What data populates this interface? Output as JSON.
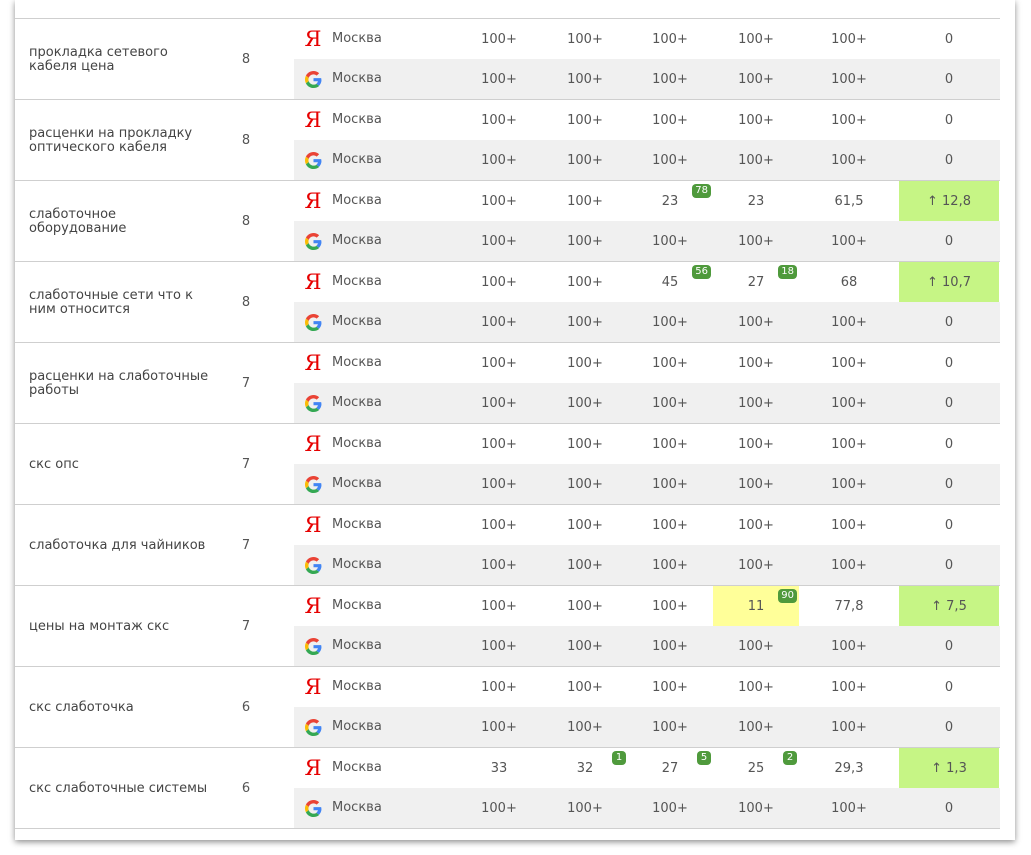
{
  "rows": [
    {
      "keyword": "прокладка сетевого кабеля цена",
      "frequency": "8",
      "yandex": {
        "region": "Москва",
        "cells": [
          {
            "v": "100+",
            "b": ""
          },
          {
            "v": "100+",
            "b": ""
          },
          {
            "v": "100+",
            "b": ""
          },
          {
            "v": "100+",
            "b": ""
          }
        ],
        "avg": "100+",
        "delta": "0",
        "up": false,
        "hl": -1
      },
      "google": {
        "region": "Москва",
        "cells": [
          {
            "v": "100+",
            "b": ""
          },
          {
            "v": "100+",
            "b": ""
          },
          {
            "v": "100+",
            "b": ""
          },
          {
            "v": "100+",
            "b": ""
          }
        ],
        "avg": "100+",
        "delta": "0"
      }
    },
    {
      "keyword": "расценки на прокладку оптического кабеля",
      "frequency": "8",
      "yandex": {
        "region": "Москва",
        "cells": [
          {
            "v": "100+",
            "b": ""
          },
          {
            "v": "100+",
            "b": ""
          },
          {
            "v": "100+",
            "b": ""
          },
          {
            "v": "100+",
            "b": ""
          }
        ],
        "avg": "100+",
        "delta": "0",
        "up": false,
        "hl": -1
      },
      "google": {
        "region": "Москва",
        "cells": [
          {
            "v": "100+",
            "b": ""
          },
          {
            "v": "100+",
            "b": ""
          },
          {
            "v": "100+",
            "b": ""
          },
          {
            "v": "100+",
            "b": ""
          }
        ],
        "avg": "100+",
        "delta": "0"
      }
    },
    {
      "keyword": "слаботочное оборудование",
      "frequency": "8",
      "yandex": {
        "region": "Москва",
        "cells": [
          {
            "v": "100+",
            "b": ""
          },
          {
            "v": "100+",
            "b": ""
          },
          {
            "v": "23",
            "b": "78"
          },
          {
            "v": "23",
            "b": ""
          }
        ],
        "avg": "61,5",
        "delta": "↑ 12,8",
        "up": true,
        "hl": -1
      },
      "google": {
        "region": "Москва",
        "cells": [
          {
            "v": "100+",
            "b": ""
          },
          {
            "v": "100+",
            "b": ""
          },
          {
            "v": "100+",
            "b": ""
          },
          {
            "v": "100+",
            "b": ""
          }
        ],
        "avg": "100+",
        "delta": "0"
      }
    },
    {
      "keyword": "слаботочные сети что к ним относится",
      "frequency": "8",
      "yandex": {
        "region": "Москва",
        "cells": [
          {
            "v": "100+",
            "b": ""
          },
          {
            "v": "100+",
            "b": ""
          },
          {
            "v": "45",
            "b": "56"
          },
          {
            "v": "27",
            "b": "18"
          }
        ],
        "avg": "68",
        "delta": "↑ 10,7",
        "up": true,
        "hl": -1
      },
      "google": {
        "region": "Москва",
        "cells": [
          {
            "v": "100+",
            "b": ""
          },
          {
            "v": "100+",
            "b": ""
          },
          {
            "v": "100+",
            "b": ""
          },
          {
            "v": "100+",
            "b": ""
          }
        ],
        "avg": "100+",
        "delta": "0"
      }
    },
    {
      "keyword": "расценки на слаботочные работы",
      "frequency": "7",
      "yandex": {
        "region": "Москва",
        "cells": [
          {
            "v": "100+",
            "b": ""
          },
          {
            "v": "100+",
            "b": ""
          },
          {
            "v": "100+",
            "b": ""
          },
          {
            "v": "100+",
            "b": ""
          }
        ],
        "avg": "100+",
        "delta": "0",
        "up": false,
        "hl": -1
      },
      "google": {
        "region": "Москва",
        "cells": [
          {
            "v": "100+",
            "b": ""
          },
          {
            "v": "100+",
            "b": ""
          },
          {
            "v": "100+",
            "b": ""
          },
          {
            "v": "100+",
            "b": ""
          }
        ],
        "avg": "100+",
        "delta": "0"
      }
    },
    {
      "keyword": "скс опс",
      "frequency": "7",
      "yandex": {
        "region": "Москва",
        "cells": [
          {
            "v": "100+",
            "b": ""
          },
          {
            "v": "100+",
            "b": ""
          },
          {
            "v": "100+",
            "b": ""
          },
          {
            "v": "100+",
            "b": ""
          }
        ],
        "avg": "100+",
        "delta": "0",
        "up": false,
        "hl": -1
      },
      "google": {
        "region": "Москва",
        "cells": [
          {
            "v": "100+",
            "b": ""
          },
          {
            "v": "100+",
            "b": ""
          },
          {
            "v": "100+",
            "b": ""
          },
          {
            "v": "100+",
            "b": ""
          }
        ],
        "avg": "100+",
        "delta": "0"
      }
    },
    {
      "keyword": "слаботочка для чайников",
      "frequency": "7",
      "yandex": {
        "region": "Москва",
        "cells": [
          {
            "v": "100+",
            "b": ""
          },
          {
            "v": "100+",
            "b": ""
          },
          {
            "v": "100+",
            "b": ""
          },
          {
            "v": "100+",
            "b": ""
          }
        ],
        "avg": "100+",
        "delta": "0",
        "up": false,
        "hl": -1
      },
      "google": {
        "region": "Москва",
        "cells": [
          {
            "v": "100+",
            "b": ""
          },
          {
            "v": "100+",
            "b": ""
          },
          {
            "v": "100+",
            "b": ""
          },
          {
            "v": "100+",
            "b": ""
          }
        ],
        "avg": "100+",
        "delta": "0"
      }
    },
    {
      "keyword": "цены на монтаж скс",
      "frequency": "7",
      "yandex": {
        "region": "Москва",
        "cells": [
          {
            "v": "100+",
            "b": ""
          },
          {
            "v": "100+",
            "b": ""
          },
          {
            "v": "100+",
            "b": ""
          },
          {
            "v": "11",
            "b": "90"
          }
        ],
        "avg": "77,8",
        "delta": "↑ 7,5",
        "up": true,
        "hl": 3
      },
      "google": {
        "region": "Москва",
        "cells": [
          {
            "v": "100+",
            "b": ""
          },
          {
            "v": "100+",
            "b": ""
          },
          {
            "v": "100+",
            "b": ""
          },
          {
            "v": "100+",
            "b": ""
          }
        ],
        "avg": "100+",
        "delta": "0"
      }
    },
    {
      "keyword": "скс слаботочка",
      "frequency": "6",
      "yandex": {
        "region": "Москва",
        "cells": [
          {
            "v": "100+",
            "b": ""
          },
          {
            "v": "100+",
            "b": ""
          },
          {
            "v": "100+",
            "b": ""
          },
          {
            "v": "100+",
            "b": ""
          }
        ],
        "avg": "100+",
        "delta": "0",
        "up": false,
        "hl": -1
      },
      "google": {
        "region": "Москва",
        "cells": [
          {
            "v": "100+",
            "b": ""
          },
          {
            "v": "100+",
            "b": ""
          },
          {
            "v": "100+",
            "b": ""
          },
          {
            "v": "100+",
            "b": ""
          }
        ],
        "avg": "100+",
        "delta": "0"
      }
    },
    {
      "keyword": "скс слаботочные системы",
      "frequency": "6",
      "yandex": {
        "region": "Москва",
        "cells": [
          {
            "v": "33",
            "b": ""
          },
          {
            "v": "32",
            "b": "1"
          },
          {
            "v": "27",
            "b": "5"
          },
          {
            "v": "25",
            "b": "2"
          }
        ],
        "avg": "29,3",
        "delta": "↑ 1,3",
        "up": true,
        "hl": -1
      },
      "google": {
        "region": "Москва",
        "cells": [
          {
            "v": "100+",
            "b": ""
          },
          {
            "v": "100+",
            "b": ""
          },
          {
            "v": "100+",
            "b": ""
          },
          {
            "v": "100+",
            "b": ""
          }
        ],
        "avg": "100+",
        "delta": "0"
      }
    }
  ],
  "icons": {
    "yandex": "yandex-logo-icon",
    "google": "google-logo-icon"
  },
  "colors": {
    "badge": "#4f9a3c",
    "delta_up": "#c6f585",
    "highlight": "#ffff99",
    "yandex": "#e60000"
  }
}
